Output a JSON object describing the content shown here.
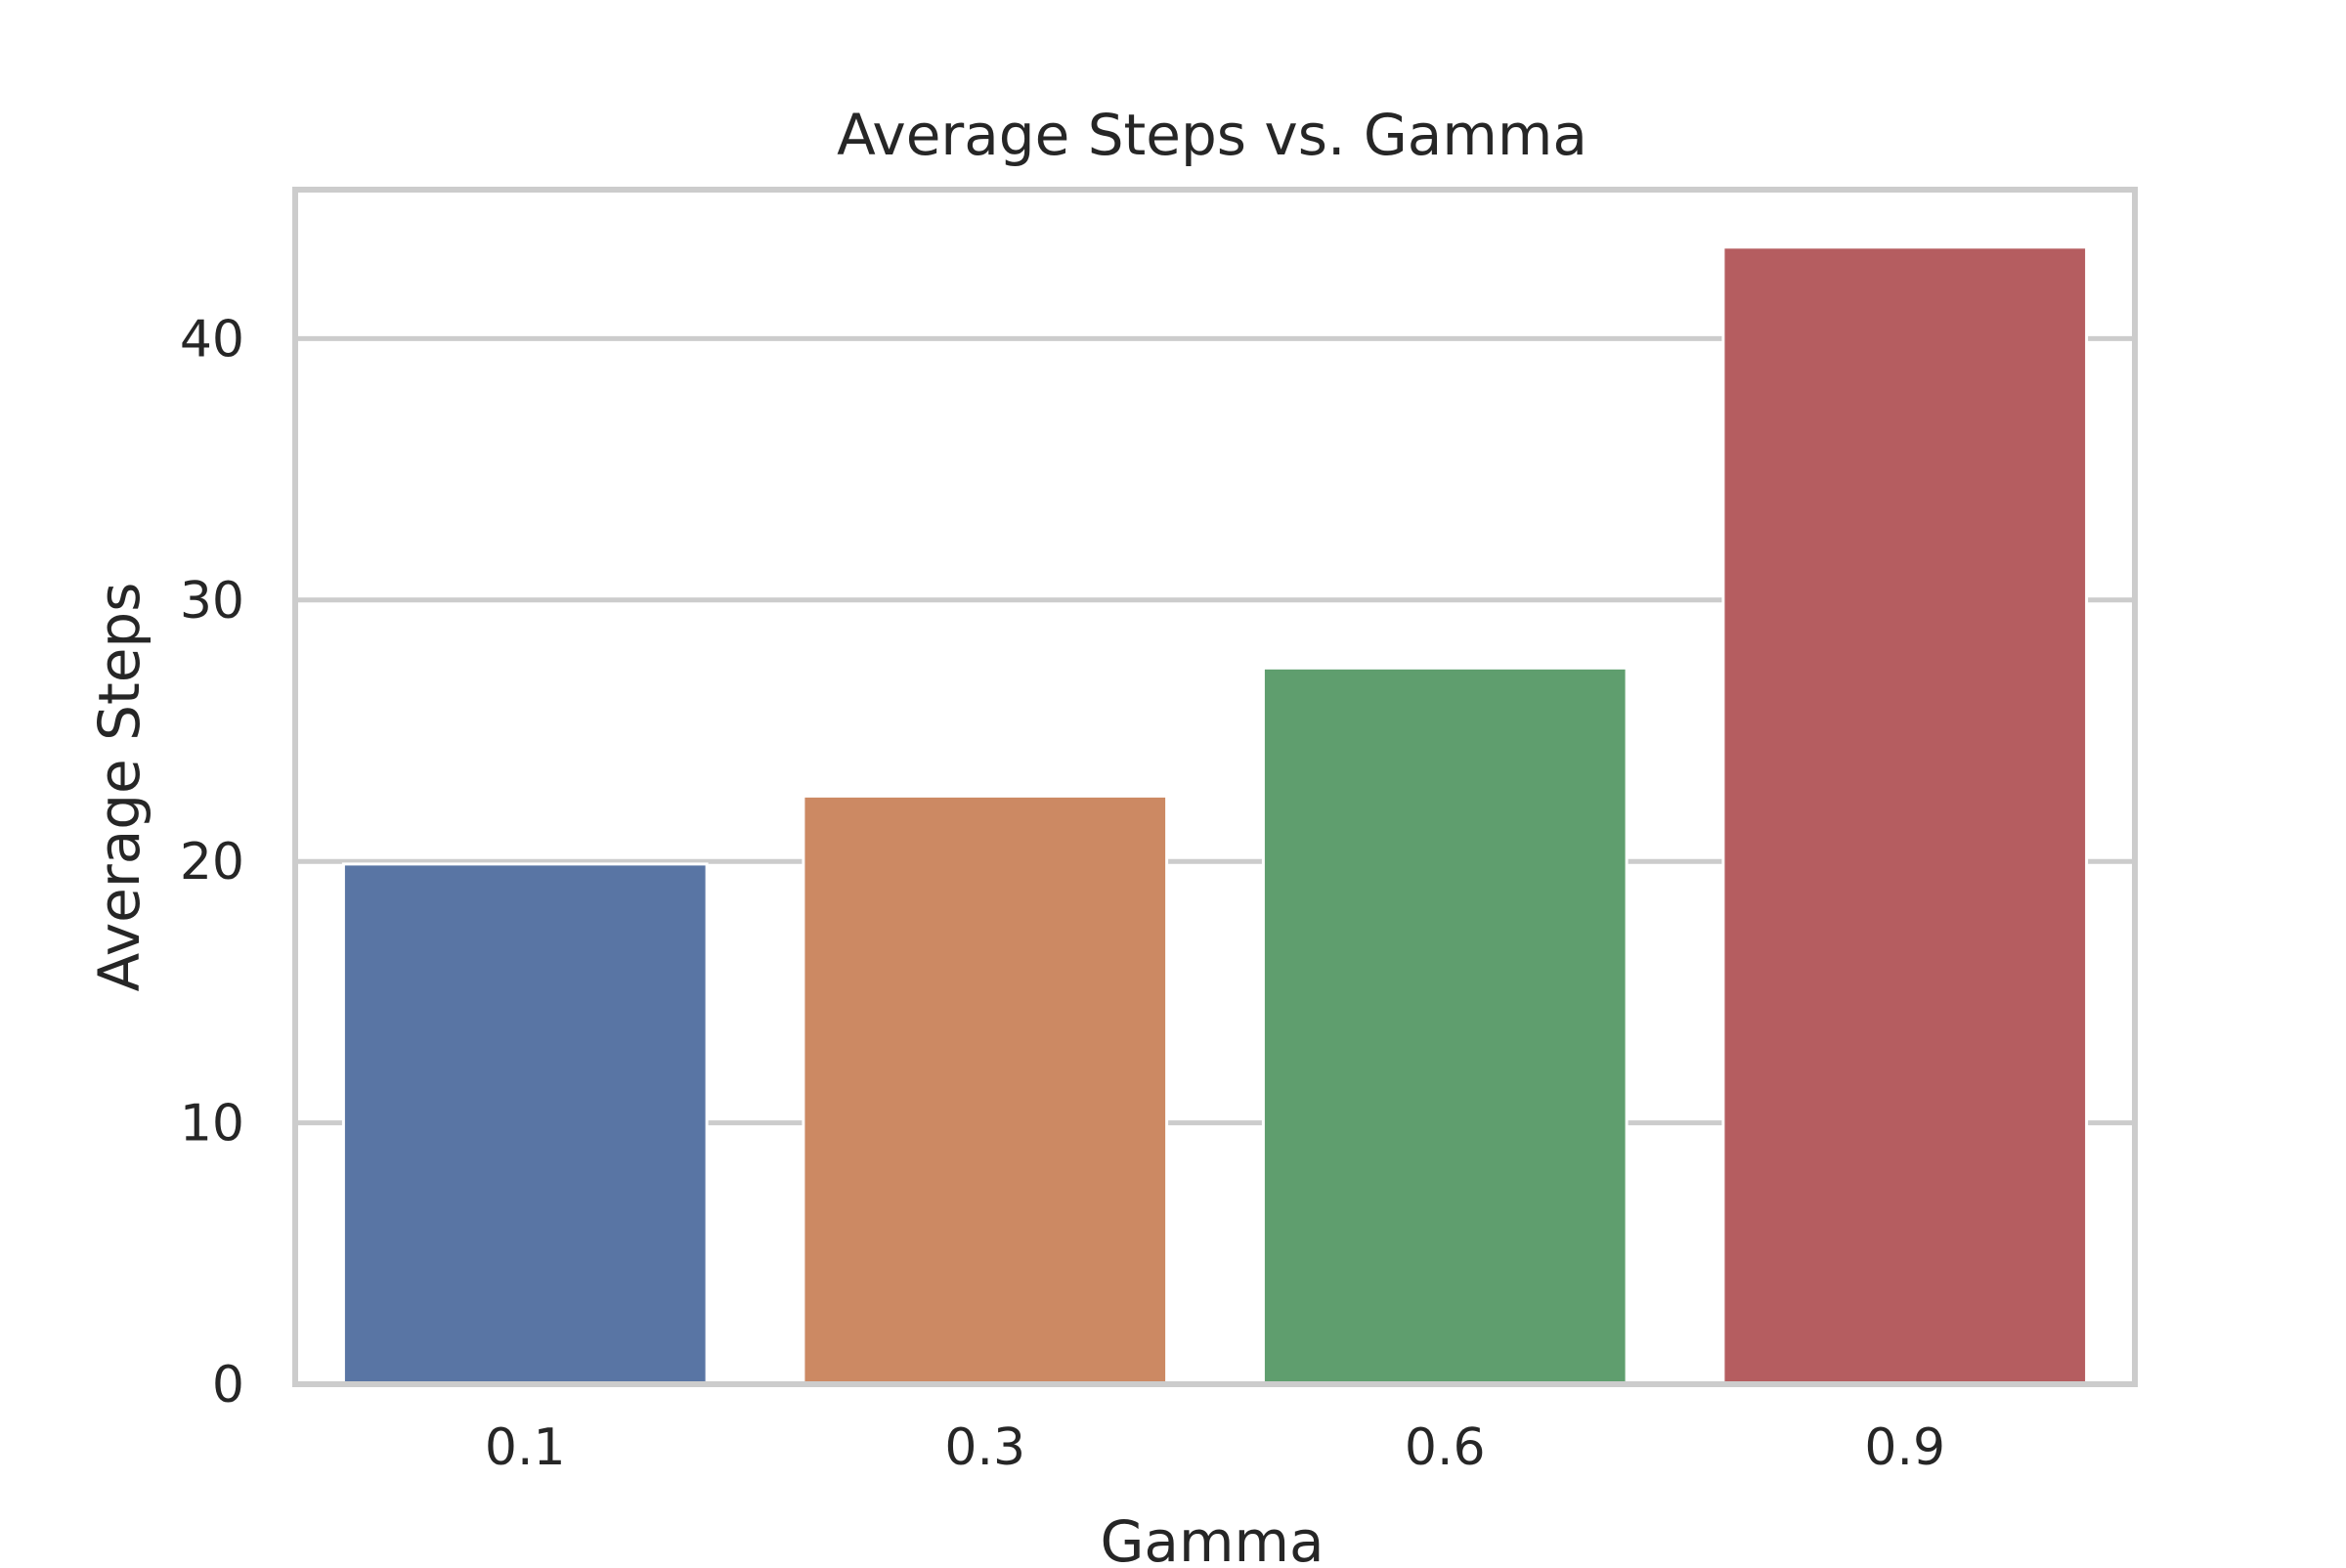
{
  "chart_data": {
    "type": "bar",
    "title": "Average Steps vs. Gamma",
    "xlabel": "Gamma",
    "ylabel": "Average Steps",
    "categories": [
      "0.1",
      "0.3",
      "0.6",
      "0.9"
    ],
    "values": [
      19.9,
      22.5,
      27.4,
      43.5
    ],
    "colors": [
      "#5975a4",
      "#cc8963",
      "#5f9e6e",
      "#b55d60"
    ],
    "ylim": [
      0,
      45.7
    ],
    "yticks": [
      0,
      10,
      20,
      30,
      40
    ],
    "ytick_labels": [
      "0",
      "10",
      "20",
      "30",
      "40"
    ],
    "grid": true,
    "grid_color": "#cccccc",
    "text_color": "#262626"
  }
}
